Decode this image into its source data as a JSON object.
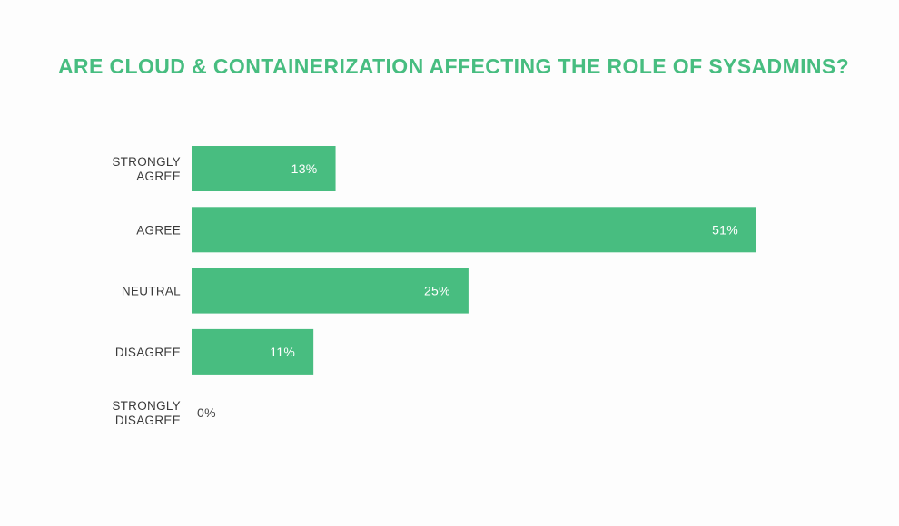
{
  "title": "ARE CLOUD & CONTAINERIZATION AFFECTING THE ROLE OF SYSADMINS?",
  "colors": {
    "accent": "#47bd80",
    "bar": "#48bd80",
    "rule": "#9bd4cf",
    "label_text": "#3a3a3a",
    "value_text_inside": "#ffffff",
    "value_text_outside": "#444444"
  },
  "chart_data": {
    "type": "bar",
    "orientation": "horizontal",
    "title": "ARE CLOUD & CONTAINERIZATION AFFECTING THE ROLE OF SYSADMINS?",
    "categories": [
      [
        "STRONGLY",
        "AGREE"
      ],
      [
        "AGREE"
      ],
      [
        "NEUTRAL"
      ],
      [
        "DISAGREE"
      ],
      [
        "STRONGLY",
        "DISAGREE"
      ]
    ],
    "values": [
      13,
      51,
      25,
      11,
      0
    ],
    "value_labels": [
      "13%",
      "51%",
      "25%",
      "11%",
      "0%"
    ],
    "unit": "%",
    "xlim": [
      0,
      51
    ],
    "grid": false,
    "legend": "none"
  }
}
